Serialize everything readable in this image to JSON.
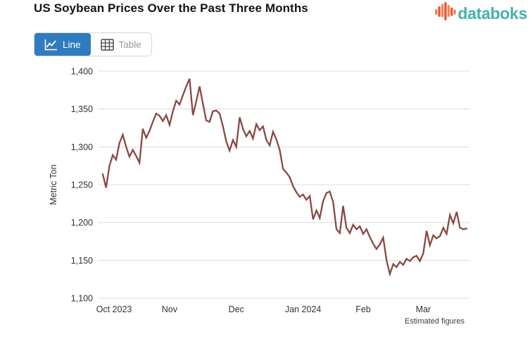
{
  "header": {
    "title": "US Soybean Prices Over the Past Three Months"
  },
  "logo": {
    "text": "databoks",
    "text_color": "#46b1a9",
    "bar_colors": [
      "#f08a3e",
      "#e25747"
    ]
  },
  "toolbar": {
    "line_label": "Line",
    "table_label": "Table",
    "active_view": "Line",
    "active_bg": "#2e7cbf",
    "inactive_text": "#9a9a9a"
  },
  "chart_data": {
    "type": "line",
    "title": "US Soybean Prices Over the Past Three Months",
    "ylabel": "Metric Ton",
    "xlabel": "",
    "note": "Estimated figures",
    "ylim": [
      1100,
      1400
    ],
    "yticks": [
      1100,
      1150,
      1200,
      1250,
      1300,
      1350,
      1400
    ],
    "ytick_labels": [
      "1,100",
      "1,150",
      "1,200",
      "1,250",
      "1,300",
      "1,350",
      "1,400"
    ],
    "xtick_labels": [
      "Oct 2023",
      "Nov",
      "Dec",
      "Jan 2024",
      "Feb",
      "Mar"
    ],
    "xtick_indices": [
      0,
      20,
      40,
      60,
      78,
      96
    ],
    "grid": "horizontal",
    "legend": "none",
    "line_color": "#8a4743",
    "grid_color": "#dcdcdc",
    "axis_text_color": "#333333",
    "values": [
      1264,
      1246,
      1275,
      1289,
      1283,
      1305,
      1316,
      1300,
      1287,
      1296,
      1288,
      1279,
      1324,
      1312,
      1321,
      1333,
      1344,
      1341,
      1334,
      1342,
      1329,
      1347,
      1361,
      1356,
      1368,
      1380,
      1390,
      1342,
      1360,
      1380,
      1357,
      1335,
      1333,
      1347,
      1348,
      1344,
      1327,
      1307,
      1295,
      1309,
      1300,
      1339,
      1324,
      1314,
      1321,
      1311,
      1330,
      1322,
      1327,
      1309,
      1302,
      1320,
      1310,
      1296,
      1271,
      1266,
      1260,
      1248,
      1240,
      1234,
      1237,
      1230,
      1235,
      1204,
      1216,
      1206,
      1228,
      1239,
      1241,
      1227,
      1191,
      1186,
      1222,
      1193,
      1186,
      1197,
      1191,
      1195,
      1185,
      1191,
      1181,
      1172,
      1165,
      1171,
      1180,
      1150,
      1132,
      1145,
      1141,
      1148,
      1144,
      1152,
      1149,
      1154,
      1156,
      1149,
      1159,
      1189,
      1170,
      1183,
      1179,
      1182,
      1193,
      1185,
      1210,
      1199,
      1214,
      1193,
      1191,
      1192
    ]
  }
}
